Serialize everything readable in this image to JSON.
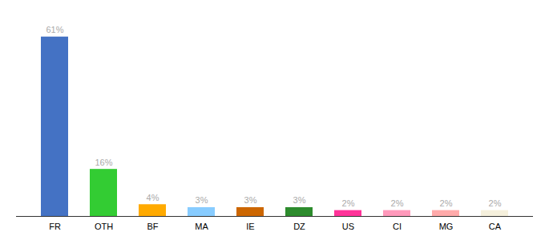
{
  "chart_data": {
    "type": "bar",
    "categories": [
      "FR",
      "OTH",
      "BF",
      "MA",
      "IE",
      "DZ",
      "US",
      "CI",
      "MG",
      "CA"
    ],
    "values": [
      61,
      16,
      4,
      3,
      3,
      3,
      2,
      2,
      2,
      2
    ],
    "value_labels": [
      "61%",
      "16%",
      "4%",
      "3%",
      "3%",
      "3%",
      "2%",
      "2%",
      "2%",
      "2%"
    ],
    "colors": [
      "#4472c4",
      "#33cc33",
      "#ffaa00",
      "#88ccff",
      "#cc6600",
      "#2d8c2d",
      "#ff3399",
      "#ff99bb",
      "#ffaaaa",
      "#f5f0dc"
    ],
    "ylim": [
      0,
      68
    ],
    "data_labels": true,
    "tick_labels": "x"
  }
}
